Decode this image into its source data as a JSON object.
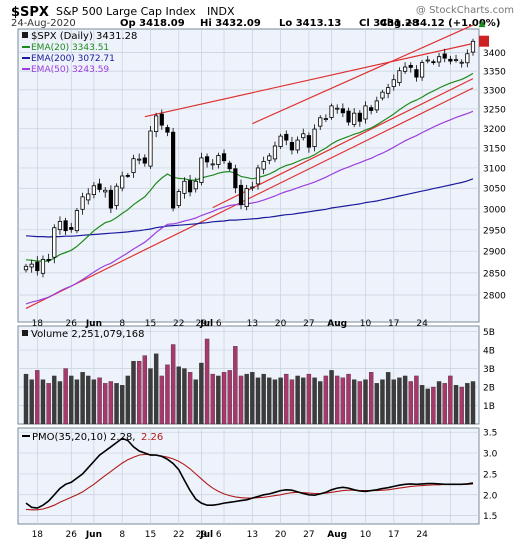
{
  "header": {
    "ticker": "$SPX",
    "name": "S&P 500 Large Cap Index",
    "exchange": "INDX",
    "date": "24-Aug-2020",
    "open": "Op 3418.09",
    "high": "Hi 3432.09",
    "low": "Lo 3413.13",
    "close": "Cl 3431.28",
    "change": "Chg +34.12 (+1.00%)",
    "change_arrow": "▲",
    "watermark": "@ StockCharts.com"
  },
  "legend": {
    "main": "$SPX (Daily) 3431.28",
    "ema20": "EMA(20) 3343.51",
    "ema200": "EMA(200) 3072.71",
    "ema50": "EMA(50) 3243.59"
  },
  "colors": {
    "background": "#eef3fb",
    "grid": "#c7d0dc",
    "ema20": "#1d8a1d",
    "ema200": "#1a1a9c",
    "ema50": "#9b3fe0",
    "trend": "#e03030",
    "up_volume": "#3c3c3c",
    "down_volume": "#a8386a",
    "pmo": "#000000",
    "pmo_signal": "#b01a1a"
  },
  "volume": {
    "label": "Volume 2,251,079,168"
  },
  "pmo": {
    "label": "PMO(35,20,10) 2.28,",
    "signal_value": "2.26"
  },
  "chart_data": [
    {
      "type": "candlestick",
      "title": "$SPX S&P 500 Large Cap Index INDX",
      "x_tick_labels": [
        "18",
        "26",
        "Jun",
        "8",
        "15",
        "22",
        "29",
        "Jul",
        "6",
        "13",
        "20",
        "27",
        "Aug",
        "10",
        "17",
        "24"
      ],
      "ylim": [
        2740,
        3465
      ],
      "y_ticks": [
        2800,
        2850,
        2900,
        2950,
        3000,
        3050,
        3100,
        3150,
        3200,
        3250,
        3300,
        3350,
        3400
      ],
      "log_scale": true,
      "grid": true,
      "last_price": 3431.28,
      "closes": [
        2865,
        2870,
        2855,
        2881,
        2880,
        2955,
        2970,
        2948,
        2951,
        2996,
        3029,
        3036,
        3056,
        3047,
        3045,
        3002,
        3055,
        3080,
        3081,
        3123,
        3122,
        3112,
        3193,
        3232,
        3208,
        3190,
        3002,
        3042,
        3067,
        3041,
        3067,
        3125,
        3115,
        3110,
        3131,
        3118,
        3098,
        3051,
        3010,
        3049,
        3053,
        3100,
        3116,
        3130,
        3155,
        3180,
        3170,
        3145,
        3170,
        3186,
        3152,
        3198,
        3227,
        3225,
        3258,
        3252,
        3240,
        3216,
        3239,
        3218,
        3258,
        3246,
        3271,
        3294,
        3306,
        3327,
        3351,
        3361,
        3360,
        3334,
        3373,
        3380,
        3373,
        3389,
        3385,
        3377,
        3381,
        3374,
        3397,
        3431
      ],
      "ema20": [
        2880,
        2879,
        2877,
        2877,
        2877,
        2884,
        2892,
        2897,
        2902,
        2911,
        2923,
        2935,
        2948,
        2958,
        2967,
        2971,
        2979,
        2989,
        2998,
        3010,
        3020,
        3029,
        3045,
        3062,
        3075,
        3085,
        3077,
        3074,
        3073,
        3070,
        3070,
        3075,
        3079,
        3082,
        3087,
        3090,
        3091,
        3087,
        3079,
        3076,
        3073,
        3076,
        3080,
        3085,
        3092,
        3100,
        3106,
        3110,
        3116,
        3122,
        3126,
        3133,
        3142,
        3150,
        3160,
        3168,
        3174,
        3179,
        3185,
        3189,
        3196,
        3201,
        3209,
        3218,
        3227,
        3237,
        3248,
        3258,
        3267,
        3273,
        3281,
        3290,
        3297,
        3305,
        3312,
        3318,
        3323,
        3328,
        3335,
        3344
      ],
      "ema50": [
        2780,
        2784,
        2787,
        2791,
        2795,
        2802,
        2809,
        2815,
        2820,
        2827,
        2835,
        2843,
        2852,
        2860,
        2867,
        2872,
        2880,
        2888,
        2896,
        2905,
        2913,
        2921,
        2932,
        2944,
        2954,
        2963,
        2964,
        2967,
        2971,
        2974,
        2978,
        2984,
        2989,
        2994,
        3000,
        3004,
        3008,
        3010,
        3010,
        3012,
        3014,
        3017,
        3021,
        3026,
        3031,
        3037,
        3042,
        3046,
        3051,
        3056,
        3060,
        3065,
        3071,
        3077,
        3084,
        3091,
        3097,
        3102,
        3108,
        3113,
        3119,
        3124,
        3131,
        3137,
        3144,
        3152,
        3160,
        3168,
        3175,
        3181,
        3189,
        3196,
        3203,
        3210,
        3216,
        3222,
        3228,
        3233,
        3238,
        3244
      ],
      "ema200": [
        2936,
        2935,
        2934,
        2934,
        2933,
        2934,
        2934,
        2935,
        2935,
        2936,
        2937,
        2938,
        2939,
        2940,
        2941,
        2942,
        2943,
        2944,
        2945,
        2947,
        2948,
        2950,
        2952,
        2955,
        2957,
        2959,
        2960,
        2961,
        2962,
        2963,
        2964,
        2966,
        2967,
        2969,
        2970,
        2971,
        2973,
        2973,
        2974,
        2975,
        2976,
        2977,
        2979,
        2980,
        2982,
        2984,
        2986,
        2987,
        2989,
        2991,
        2993,
        2995,
        2997,
        2999,
        3002,
        3004,
        3006,
        3008,
        3010,
        3012,
        3015,
        3017,
        3019,
        3022,
        3025,
        3028,
        3031,
        3034,
        3037,
        3040,
        3043,
        3046,
        3049,
        3052,
        3055,
        3058,
        3061,
        3064,
        3068,
        3073
      ],
      "trend_lines": [
        {
          "from": [
            0,
            2770
          ],
          "to": [
            79,
            3305
          ]
        },
        {
          "from": [
            21,
            3230
          ],
          "to": [
            79,
            3425
          ]
        },
        {
          "from": [
            40,
            3212
          ],
          "to": [
            79,
            3476
          ]
        },
        {
          "from": [
            33,
            3003
          ],
          "to": [
            79,
            3330
          ]
        }
      ]
    },
    {
      "type": "bar",
      "title": "Volume 2,251,079,168",
      "ylim": [
        0,
        5.3
      ],
      "y_ticks": [
        "1B",
        "2B",
        "3B",
        "4B",
        "5B"
      ],
      "volumes_billions": [
        2.7,
        2.4,
        2.9,
        2.4,
        2.2,
        2.6,
        2.3,
        3.0,
        2.6,
        2.4,
        2.8,
        2.6,
        2.4,
        2.5,
        2.2,
        2.3,
        2.2,
        2.1,
        2.6,
        3.4,
        3.4,
        3.7,
        3.0,
        3.8,
        2.6,
        3.2,
        4.3,
        3.1,
        3.0,
        2.8,
        2.4,
        3.3,
        4.6,
        2.7,
        2.6,
        2.8,
        2.9,
        4.2,
        2.6,
        2.7,
        2.8,
        2.5,
        2.7,
        2.5,
        2.4,
        2.5,
        2.7,
        2.4,
        2.6,
        2.5,
        2.7,
        2.5,
        2.3,
        2.6,
        2.9,
        2.6,
        2.5,
        2.7,
        2.4,
        2.3,
        2.4,
        2.8,
        2.2,
        2.4,
        2.8,
        2.4,
        2.5,
        2.6,
        2.3,
        2.6,
        2.1,
        1.9,
        2.0,
        2.3,
        2.2,
        2.6,
        2.1,
        2.0,
        2.2,
        2.3
      ]
    },
    {
      "type": "line",
      "title": "PMO(35,20,10)",
      "ylim": [
        1.3,
        3.6
      ],
      "y_ticks": [
        1.5,
        2.0,
        2.5,
        3.0,
        3.5
      ],
      "series": [
        {
          "name": "PMO(35,20,10) 2.28",
          "values": [
            1.8,
            1.7,
            1.68,
            1.75,
            1.85,
            2.0,
            2.15,
            2.25,
            2.3,
            2.4,
            2.5,
            2.65,
            2.8,
            2.95,
            3.05,
            3.15,
            3.25,
            3.35,
            3.3,
            3.15,
            3.05,
            3.0,
            2.95,
            2.95,
            2.92,
            2.85,
            2.75,
            2.6,
            2.35,
            2.1,
            1.9,
            1.8,
            1.75,
            1.75,
            1.77,
            1.8,
            1.82,
            1.84,
            1.86,
            1.88,
            1.92,
            1.96,
            2.0,
            2.02,
            2.06,
            2.1,
            2.12,
            2.11,
            2.07,
            2.03,
            2.0,
            1.99,
            2.02,
            2.06,
            2.12,
            2.16,
            2.18,
            2.16,
            2.12,
            2.09,
            2.08,
            2.1,
            2.12,
            2.15,
            2.17,
            2.2,
            2.23,
            2.25,
            2.26,
            2.25,
            2.26,
            2.27,
            2.27,
            2.26,
            2.25,
            2.25,
            2.25,
            2.25,
            2.26,
            2.28
          ]
        },
        {
          "name": "2.26",
          "values": [
            1.65,
            1.64,
            1.64,
            1.66,
            1.7,
            1.75,
            1.82,
            1.88,
            1.94,
            2.0,
            2.07,
            2.16,
            2.25,
            2.36,
            2.46,
            2.56,
            2.66,
            2.76,
            2.84,
            2.9,
            2.95,
            2.97,
            2.96,
            2.95,
            2.93,
            2.9,
            2.86,
            2.8,
            2.72,
            2.62,
            2.5,
            2.38,
            2.26,
            2.16,
            2.08,
            2.02,
            1.98,
            1.95,
            1.93,
            1.92,
            1.92,
            1.93,
            1.94,
            1.96,
            1.98,
            2.0,
            2.03,
            2.05,
            2.06,
            2.05,
            2.04,
            2.03,
            2.03,
            2.04,
            2.06,
            2.08,
            2.1,
            2.11,
            2.11,
            2.1,
            2.1,
            2.1,
            2.1,
            2.11,
            2.12,
            2.14,
            2.16,
            2.18,
            2.2,
            2.21,
            2.22,
            2.23,
            2.24,
            2.24,
            2.25,
            2.25,
            2.25,
            2.25,
            2.25,
            2.26
          ]
        }
      ]
    }
  ]
}
